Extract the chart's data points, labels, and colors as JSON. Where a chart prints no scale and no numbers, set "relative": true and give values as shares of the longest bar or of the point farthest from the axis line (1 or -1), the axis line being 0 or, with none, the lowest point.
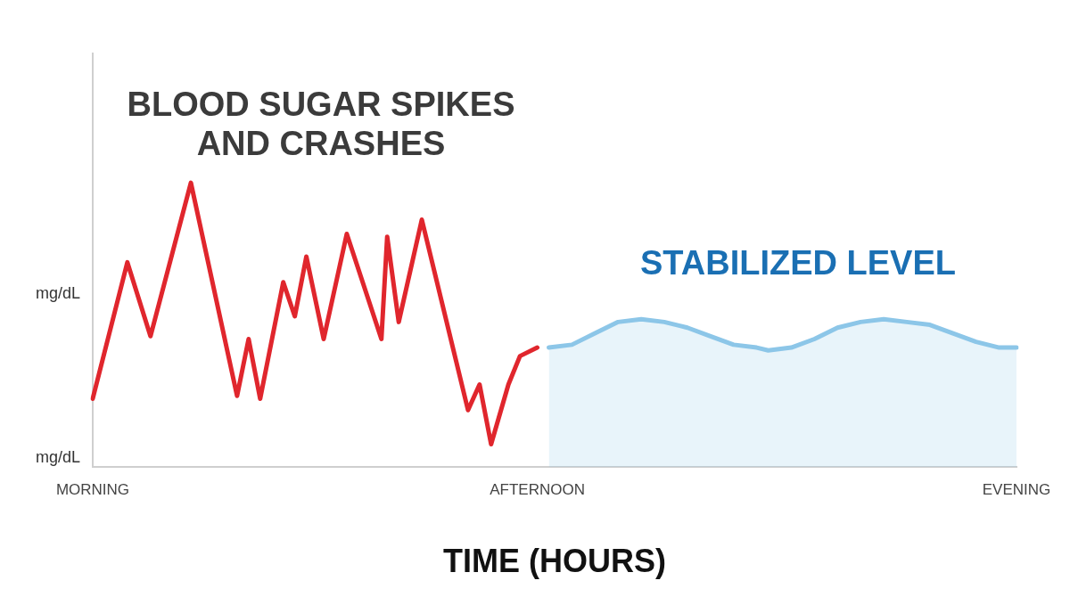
{
  "chart_data": {
    "type": "line",
    "relative": true,
    "xlabel": "TIME (HOURS)",
    "tick_labels": "x",
    "grid": false,
    "legend": false,
    "marker": "none",
    "line_style": "solid",
    "annotations": [
      "mg/dL",
      "mg/dL",
      "BLOOD SUGAR SPIKES AND CRASHES",
      "STABILIZED LEVEL"
    ],
    "categories": [
      "MORNING",
      null,
      null,
      null,
      null,
      null,
      null,
      null,
      null,
      null,
      null,
      null,
      null,
      null,
      null,
      null,
      null,
      null,
      null,
      null,
      null,
      null,
      null,
      null,
      null,
      null,
      null,
      null,
      null,
      null,
      null,
      null,
      null,
      null,
      null,
      null,
      null,
      null,
      null,
      null,
      null,
      null,
      null,
      null,
      null,
      null,
      null,
      null,
      null,
      null,
      null,
      null,
      null,
      null,
      null,
      null,
      null,
      null,
      null,
      null,
      null,
      null,
      null,
      null,
      null,
      null,
      null,
      null,
      null,
      null,
      null,
      null,
      null,
      null,
      null,
      null,
      null,
      "AFTERNOON",
      null,
      null,
      null,
      null,
      null,
      null,
      null,
      null,
      null,
      null,
      null,
      null,
      null,
      null,
      null,
      null,
      null,
      null,
      null,
      null,
      null,
      null,
      null,
      null,
      null,
      null,
      null,
      null,
      null,
      null,
      null,
      null,
      null,
      null,
      null,
      null,
      null,
      null,
      null,
      null,
      null,
      null,
      null,
      null,
      null,
      null,
      null,
      null,
      null,
      null,
      null,
      null,
      null,
      null,
      null,
      null,
      null,
      null,
      null,
      null,
      null,
      null,
      null,
      null,
      null,
      null,
      null,
      null,
      null,
      null,
      null,
      null,
      null,
      null,
      null,
      null,
      null,
      null,
      null,
      null,
      null,
      null,
      "EVENING"
    ],
    "series": [
      {
        "type": "line",
        "color": "#e0262d",
        "values": [
          0.24,
          null,
          null,
          null,
          null,
          null,
          0.72,
          null,
          null,
          null,
          0.46,
          null,
          null,
          null,
          null,
          null,
          null,
          1,
          null,
          null,
          null,
          null,
          null,
          null,
          null,
          0.25,
          null,
          0.45,
          null,
          0.24,
          null,
          null,
          null,
          0.65,
          null,
          0.53,
          null,
          0.74,
          null,
          null,
          0.45,
          null,
          null,
          null,
          0.82,
          null,
          null,
          null,
          null,
          null,
          0.45,
          0.81,
          null,
          0.51,
          null,
          null,
          null,
          0.87,
          null,
          null,
          null,
          null,
          null,
          null,
          null,
          0.2,
          null,
          0.29,
          null,
          0.08,
          null,
          null,
          0.29,
          null,
          0.39,
          null,
          null,
          0.42,
          null,
          null,
          null,
          null,
          null,
          null,
          null,
          null,
          null,
          null,
          null,
          null,
          null,
          null,
          null,
          null,
          null,
          null,
          null,
          null,
          null,
          null,
          null,
          null,
          null,
          null,
          null,
          null,
          null,
          null,
          null,
          null,
          null,
          null,
          null,
          null,
          null,
          null,
          null,
          null,
          null,
          null,
          null,
          null,
          null,
          null,
          null,
          null,
          null,
          null,
          null,
          null,
          null,
          null,
          null,
          null,
          null,
          null,
          null,
          null,
          null,
          null,
          null,
          null,
          null,
          null,
          null,
          null,
          null,
          null,
          null,
          null,
          null,
          null,
          null,
          null,
          null,
          null,
          null,
          null,
          null,
          null,
          null
        ]
      },
      {
        "type": "area",
        "color": "#8cc6e8",
        "values": [
          null,
          null,
          null,
          null,
          null,
          null,
          null,
          null,
          null,
          null,
          null,
          null,
          null,
          null,
          null,
          null,
          null,
          null,
          null,
          null,
          null,
          null,
          null,
          null,
          null,
          null,
          null,
          null,
          null,
          null,
          null,
          null,
          null,
          null,
          null,
          null,
          null,
          null,
          null,
          null,
          null,
          null,
          null,
          null,
          null,
          null,
          null,
          null,
          null,
          null,
          null,
          null,
          null,
          null,
          null,
          null,
          null,
          null,
          null,
          null,
          null,
          null,
          null,
          null,
          null,
          null,
          null,
          null,
          null,
          null,
          null,
          null,
          null,
          null,
          null,
          null,
          null,
          null,
          null,
          0.42,
          null,
          null,
          null,
          0.43,
          null,
          null,
          null,
          0.47,
          null,
          null,
          null,
          0.51,
          null,
          null,
          null,
          0.52,
          null,
          null,
          null,
          0.51,
          null,
          null,
          null,
          0.49,
          null,
          null,
          null,
          0.46,
          null,
          null,
          null,
          0.43,
          null,
          null,
          null,
          0.42,
          null,
          0.41,
          null,
          null,
          null,
          0.42,
          null,
          null,
          null,
          0.45,
          null,
          null,
          null,
          0.49,
          null,
          null,
          null,
          0.51,
          null,
          null,
          null,
          0.52,
          null,
          null,
          null,
          0.51,
          null,
          null,
          null,
          0.5,
          null,
          null,
          null,
          0.47,
          null,
          null,
          null,
          0.44,
          null,
          null,
          null,
          0.42,
          null,
          null,
          0.42
        ]
      }
    ]
  }
}
